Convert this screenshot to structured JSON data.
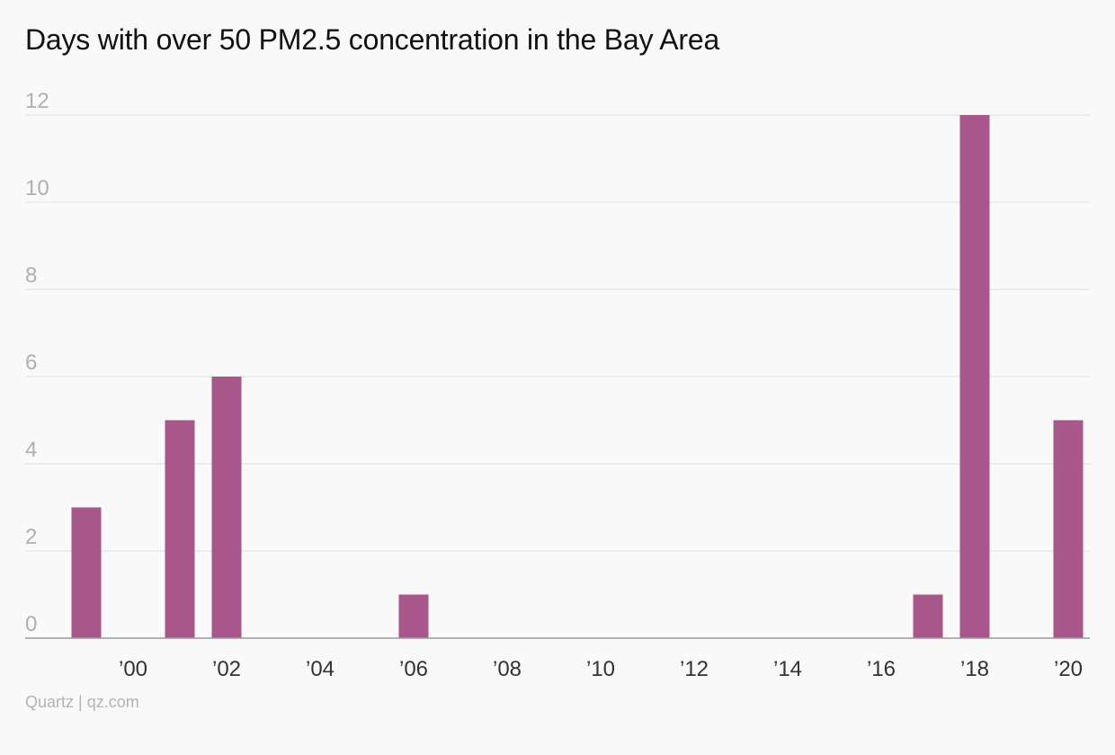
{
  "chart_data": {
    "type": "bar",
    "title": "Days with over 50 PM2.5 concentration in the Bay Area",
    "xlabel": "",
    "ylabel": "",
    "categories": [
      1999,
      2000,
      2001,
      2002,
      2003,
      2004,
      2005,
      2006,
      2007,
      2008,
      2009,
      2010,
      2011,
      2012,
      2013,
      2014,
      2015,
      2016,
      2017,
      2018,
      2019,
      2020
    ],
    "values": [
      3,
      0,
      5,
      6,
      0,
      0,
      0,
      1,
      0,
      0,
      0,
      0,
      0,
      0,
      0,
      0,
      0,
      0,
      1,
      12,
      0,
      5
    ],
    "x_tick_labels": [
      "’00",
      "’02",
      "’04",
      "’06",
      "’08",
      "’10",
      "’12",
      "’14",
      "’16",
      "’18",
      "’20"
    ],
    "x_tick_years": [
      2000,
      2002,
      2004,
      2006,
      2008,
      2010,
      2012,
      2014,
      2016,
      2018,
      2020
    ],
    "y_ticks": [
      0,
      2,
      4,
      6,
      8,
      10,
      12
    ],
    "ylim": [
      0,
      12
    ],
    "grid": true,
    "legend": "none",
    "bar_color": "#a8578a"
  },
  "source": "Quartz | qz.com"
}
